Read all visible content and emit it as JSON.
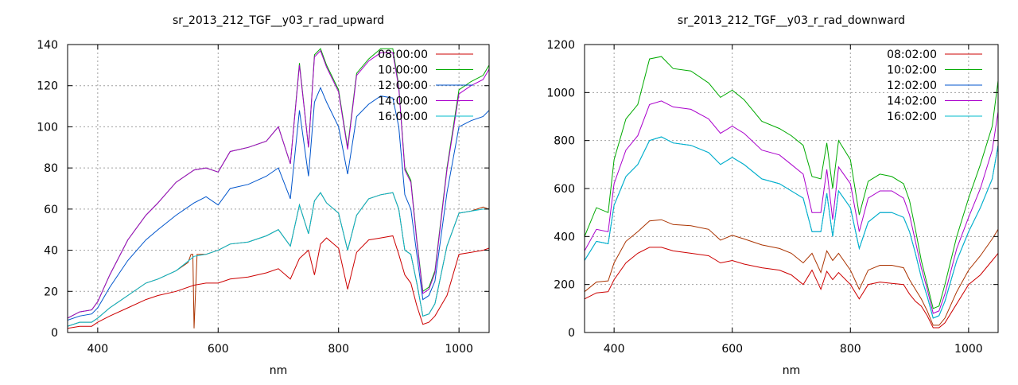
{
  "chart_data": [
    {
      "type": "line",
      "title": "sr_2013_212_TGF__y03_r_rad_upward",
      "xlabel": "nm",
      "ylabel": "",
      "xlim": [
        350,
        1050
      ],
      "ylim": [
        0,
        140
      ],
      "xticks": [
        400,
        600,
        800,
        1000
      ],
      "yticks": [
        0,
        20,
        40,
        60,
        80,
        100,
        120,
        140
      ],
      "grid": true,
      "legend_position": "top-right",
      "x": [
        350,
        370,
        390,
        400,
        420,
        450,
        480,
        500,
        530,
        560,
        580,
        600,
        620,
        650,
        680,
        700,
        720,
        735,
        750,
        760,
        770,
        780,
        800,
        815,
        830,
        850,
        870,
        890,
        900,
        910,
        920,
        930,
        940,
        950,
        960,
        980,
        1000,
        1020,
        1040,
        1050
      ],
      "series": [
        {
          "name": "08:00:00",
          "color": "#cc0000",
          "values": [
            2,
            3,
            3,
            5,
            8,
            12,
            16,
            18,
            20,
            23,
            24,
            24,
            26,
            27,
            29,
            31,
            26,
            36,
            40,
            28,
            43,
            46,
            41,
            21,
            39,
            45,
            46,
            47,
            38,
            28,
            24,
            13,
            4,
            5,
            8,
            18,
            38,
            39,
            40,
            41
          ]
        },
        {
          "name": "10:00:00",
          "color": "#00aa00",
          "values": [
            7,
            10,
            11,
            15,
            28,
            45,
            57,
            63,
            73,
            79,
            80,
            78,
            88,
            90,
            93,
            100,
            82,
            131,
            90,
            135,
            138,
            130,
            118,
            90,
            126,
            133,
            138,
            138,
            120,
            80,
            74,
            45,
            20,
            22,
            30,
            80,
            118,
            122,
            125,
            130
          ]
        },
        {
          "name": "12:00:00",
          "color": "#0055cc",
          "values": [
            6,
            8,
            9,
            12,
            22,
            35,
            45,
            50,
            57,
            63,
            66,
            62,
            70,
            72,
            76,
            80,
            65,
            108,
            76,
            112,
            119,
            112,
            100,
            77,
            105,
            111,
            115,
            114,
            100,
            67,
            60,
            38,
            16,
            18,
            25,
            68,
            100,
            103,
            105,
            108
          ]
        },
        {
          "name": "14:00:00",
          "color": "#aa00cc",
          "values": [
            7,
            10,
            11,
            15,
            28,
            45,
            57,
            63,
            73,
            79,
            80,
            78,
            88,
            90,
            93,
            100,
            82,
            130,
            90,
            134,
            137,
            129,
            117,
            89,
            125,
            132,
            136,
            136,
            119,
            79,
            73,
            44,
            19,
            21,
            29,
            79,
            116,
            120,
            123,
            128
          ]
        },
        {
          "name": "16:00:00",
          "color": "#00bbcc",
          "values": [
            3,
            5,
            5,
            7,
            12,
            18,
            24,
            26,
            30,
            37,
            38,
            40,
            43,
            44,
            47,
            50,
            42,
            62,
            48,
            64,
            68,
            63,
            58,
            40,
            57,
            65,
            67,
            68,
            60,
            40,
            38,
            24,
            8,
            9,
            14,
            42,
            58,
            59,
            60,
            60
          ]
        }
      ],
      "extra_series": [
        {
          "name": "",
          "color": "#aa3300",
          "x": [
            350,
            370,
            390,
            400,
            420,
            450,
            480,
            500,
            530,
            550,
            555,
            558,
            560,
            565,
            580,
            600,
            620,
            650,
            680,
            700,
            720,
            735,
            750,
            760,
            770,
            780,
            800,
            815,
            830,
            850,
            870,
            890,
            900,
            910,
            920,
            930,
            940,
            950,
            960,
            980,
            1000,
            1020,
            1040,
            1050
          ],
          "values": [
            3,
            5,
            5,
            7,
            12,
            18,
            24,
            26,
            30,
            34,
            38,
            38,
            2,
            38,
            38,
            40,
            43,
            44,
            47,
            50,
            42,
            62,
            48,
            64,
            68,
            63,
            58,
            40,
            57,
            65,
            67,
            68,
            60,
            40,
            38,
            24,
            8,
            9,
            14,
            42,
            58,
            59,
            61,
            60
          ]
        }
      ]
    },
    {
      "type": "line",
      "title": "sr_2013_212_TGF__y03_r_rad_downward",
      "xlabel": "nm",
      "ylabel": "",
      "xlim": [
        350,
        1050
      ],
      "ylim": [
        0,
        1200
      ],
      "xticks": [
        400,
        600,
        800,
        1000
      ],
      "yticks": [
        0,
        200,
        400,
        600,
        800,
        1000,
        1200
      ],
      "grid": true,
      "legend_position": "top-right",
      "x": [
        350,
        370,
        390,
        400,
        420,
        440,
        460,
        480,
        500,
        530,
        560,
        580,
        600,
        620,
        650,
        680,
        700,
        720,
        735,
        750,
        760,
        770,
        780,
        800,
        815,
        830,
        850,
        870,
        890,
        900,
        910,
        920,
        930,
        940,
        950,
        960,
        980,
        1000,
        1020,
        1040,
        1050
      ],
      "series": [
        {
          "name": "08:02:00",
          "color": "#cc0000",
          "values": [
            140,
            165,
            170,
            220,
            290,
            330,
            355,
            355,
            340,
            330,
            320,
            290,
            300,
            285,
            270,
            260,
            240,
            200,
            260,
            180,
            255,
            220,
            250,
            200,
            140,
            200,
            210,
            205,
            200,
            160,
            130,
            110,
            70,
            20,
            20,
            40,
            120,
            200,
            240,
            300,
            330
          ]
        },
        {
          "name": "10:02:00",
          "color": "#00aa00",
          "values": [
            400,
            520,
            500,
            720,
            890,
            950,
            1140,
            1150,
            1100,
            1090,
            1040,
            980,
            1010,
            970,
            880,
            850,
            820,
            780,
            650,
            640,
            790,
            600,
            800,
            720,
            490,
            630,
            660,
            650,
            620,
            550,
            430,
            300,
            200,
            100,
            110,
            200,
            400,
            560,
            700,
            860,
            1050
          ]
        },
        {
          "name": "12:02:00",
          "color": "#0055cc",
          "values": [
            300,
            380,
            370,
            530,
            650,
            700,
            800,
            815,
            790,
            780,
            750,
            700,
            730,
            700,
            640,
            620,
            590,
            560,
            420,
            420,
            580,
            400,
            590,
            520,
            350,
            460,
            500,
            500,
            480,
            420,
            330,
            230,
            150,
            60,
            70,
            130,
            300,
            420,
            520,
            640,
            780
          ]
        },
        {
          "name": "14:02:00",
          "color": "#aa00cc",
          "values": [
            340,
            430,
            420,
            620,
            760,
            820,
            950,
            965,
            940,
            930,
            890,
            830,
            860,
            830,
            760,
            740,
            700,
            660,
            500,
            500,
            680,
            470,
            690,
            620,
            420,
            560,
            590,
            590,
            560,
            490,
            380,
            270,
            180,
            80,
            90,
            160,
            350,
            480,
            600,
            760,
            920
          ]
        },
        {
          "name": "16:02:00",
          "color": "#00bbcc",
          "values": [
            300,
            380,
            370,
            530,
            650,
            700,
            800,
            815,
            790,
            780,
            750,
            700,
            730,
            700,
            640,
            620,
            590,
            560,
            420,
            420,
            580,
            400,
            590,
            520,
            350,
            460,
            500,
            500,
            480,
            420,
            330,
            230,
            150,
            60,
            70,
            130,
            300,
            420,
            520,
            640,
            780
          ]
        }
      ],
      "extra_series": [
        {
          "name": "",
          "color": "#aa3300",
          "x": [
            350,
            370,
            390,
            400,
            420,
            440,
            460,
            480,
            500,
            530,
            560,
            580,
            600,
            620,
            650,
            680,
            700,
            720,
            735,
            750,
            760,
            770,
            780,
            800,
            815,
            830,
            850,
            870,
            890,
            900,
            910,
            920,
            930,
            940,
            950,
            960,
            980,
            1000,
            1020,
            1040,
            1050
          ],
          "values": [
            170,
            210,
            215,
            290,
            380,
            420,
            465,
            470,
            450,
            445,
            430,
            385,
            405,
            390,
            365,
            350,
            330,
            290,
            330,
            250,
            340,
            300,
            330,
            260,
            180,
            260,
            280,
            280,
            270,
            220,
            180,
            140,
            90,
            30,
            30,
            60,
            170,
            260,
            320,
            390,
            430
          ]
        }
      ]
    }
  ]
}
